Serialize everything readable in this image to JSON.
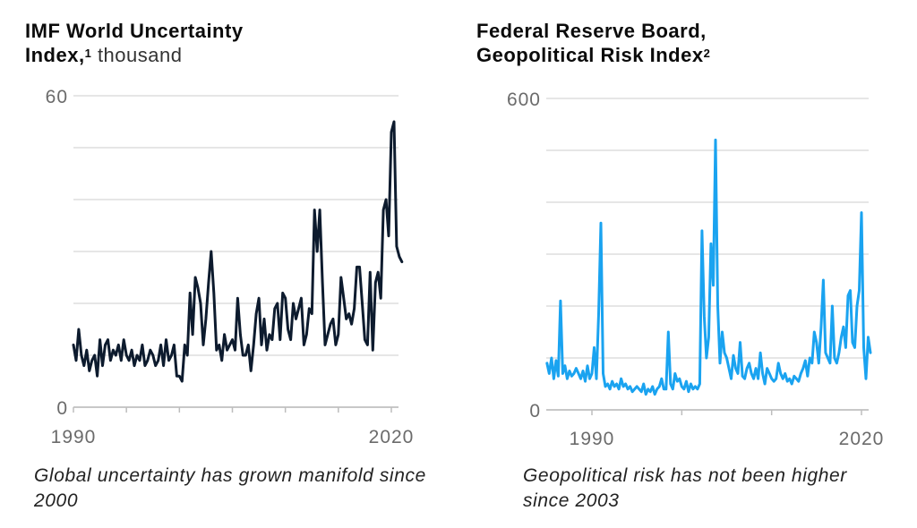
{
  "chart_data": [
    {
      "type": "line",
      "title": "IMF World Uncertainty Index,",
      "title_footnote": "1",
      "title_unit": "thousand",
      "caption": "Global uncertainty has grown manifold since 2000",
      "xlabel": "",
      "ylabel": "",
      "xlim": [
        1990,
        2021
      ],
      "ylim": [
        0,
        60
      ],
      "y_ticks": [
        0,
        60
      ],
      "y_tick_labels": [
        "0",
        "60"
      ],
      "gridlines_y": [
        0,
        10,
        20,
        30,
        40,
        50,
        60
      ],
      "x_ticks": [
        1990,
        1995,
        2000,
        2005,
        2010,
        2015,
        2020
      ],
      "x_tick_labels": [
        {
          "x": 1990,
          "label": "1990"
        },
        {
          "x": 2020,
          "label": "2020"
        }
      ],
      "grid": true,
      "line_color": "#0d1b2e",
      "series": [
        {
          "name": "World Uncertainty Index",
          "x": [
            1990.0,
            1990.25,
            1990.5,
            1990.75,
            1991.0,
            1991.25,
            1991.5,
            1991.75,
            1992.0,
            1992.25,
            1992.5,
            1992.75,
            1993.0,
            1993.25,
            1993.5,
            1993.75,
            1994.0,
            1994.25,
            1994.5,
            1994.75,
            1995.0,
            1995.25,
            1995.5,
            1995.75,
            1996.0,
            1996.25,
            1996.5,
            1996.75,
            1997.0,
            1997.25,
            1997.5,
            1997.75,
            1998.0,
            1998.25,
            1998.5,
            1998.75,
            1999.0,
            1999.25,
            1999.5,
            1999.75,
            2000.0,
            2000.25,
            2000.5,
            2000.75,
            2001.0,
            2001.25,
            2001.5,
            2001.75,
            2002.0,
            2002.25,
            2002.5,
            2002.75,
            2003.0,
            2003.25,
            2003.5,
            2003.75,
            2004.0,
            2004.25,
            2004.5,
            2004.75,
            2005.0,
            2005.25,
            2005.5,
            2005.75,
            2006.0,
            2006.25,
            2006.5,
            2006.75,
            2007.0,
            2007.25,
            2007.5,
            2007.75,
            2008.0,
            2008.25,
            2008.5,
            2008.75,
            2009.0,
            2009.25,
            2009.5,
            2009.75,
            2010.0,
            2010.25,
            2010.5,
            2010.75,
            2011.0,
            2011.25,
            2011.5,
            2011.75,
            2012.0,
            2012.25,
            2012.5,
            2012.75,
            2013.0,
            2013.25,
            2013.5,
            2013.75,
            2014.0,
            2014.25,
            2014.5,
            2014.75,
            2015.0,
            2015.25,
            2015.5,
            2015.75,
            2016.0,
            2016.25,
            2016.5,
            2016.75,
            2017.0,
            2017.25,
            2017.5,
            2017.75,
            2018.0,
            2018.25,
            2018.5,
            2018.75,
            2019.0,
            2019.25,
            2019.5,
            2019.75,
            2020.0,
            2020.25,
            2020.5,
            2020.75,
            2021.0
          ],
          "values": [
            12,
            9,
            15,
            10,
            8,
            11,
            7,
            9,
            10,
            6,
            13,
            8,
            12,
            13,
            9,
            11,
            10,
            12,
            9,
            13,
            10,
            9,
            11,
            8,
            10,
            9,
            12,
            8,
            9,
            11,
            10,
            8,
            9,
            12,
            8,
            13,
            9,
            10,
            12,
            6,
            6,
            5,
            12,
            10,
            22,
            14,
            25,
            23,
            20,
            12,
            17,
            24,
            30,
            22,
            11,
            12,
            9,
            14,
            11,
            12,
            13,
            11,
            21,
            14,
            10,
            10,
            12,
            7,
            12,
            18,
            21,
            12,
            17,
            11,
            14,
            13,
            19,
            20,
            13,
            22,
            21,
            15,
            13,
            20,
            17,
            19,
            21,
            12,
            14,
            19,
            18,
            38,
            30,
            38,
            24,
            12,
            14,
            16,
            17,
            12,
            14,
            25,
            21,
            17,
            18,
            16,
            19,
            27,
            27,
            20,
            13,
            12,
            26,
            11,
            24,
            26,
            21,
            38,
            40,
            33,
            53,
            55,
            31,
            29,
            28
          ],
          "note": "approximate values read from chart"
        }
      ]
    },
    {
      "type": "line",
      "title": "Federal Reserve Board, Geopolitical Risk Index",
      "title_footnote": "2",
      "caption": "Geopolitical risk has not been higher since 2003",
      "xlabel": "",
      "ylabel": "",
      "xlim": [
        1985,
        2021
      ],
      "ylim": [
        0,
        600
      ],
      "y_ticks": [
        0,
        600
      ],
      "y_tick_labels": [
        "0",
        "600"
      ],
      "gridlines_y": [
        0,
        100,
        200,
        300,
        400,
        500,
        600
      ],
      "x_ticks": [
        1990,
        2000,
        2010,
        2020
      ],
      "x_tick_labels": [
        {
          "x": 1990,
          "label": "1990"
        },
        {
          "x": 2020,
          "label": "2020"
        }
      ],
      "grid": true,
      "line_color": "#1aa3f0",
      "series": [
        {
          "name": "Geopolitical Risk Index",
          "x": [
            1985.0,
            1985.25,
            1985.5,
            1985.75,
            1986.0,
            1986.25,
            1986.5,
            1986.75,
            1987.0,
            1987.25,
            1987.5,
            1987.75,
            1988.0,
            1988.25,
            1988.5,
            1988.75,
            1989.0,
            1989.25,
            1989.5,
            1989.75,
            1990.0,
            1990.25,
            1990.5,
            1990.75,
            1991.0,
            1991.25,
            1991.5,
            1991.75,
            1992.0,
            1992.25,
            1992.5,
            1992.75,
            1993.0,
            1993.25,
            1993.5,
            1993.75,
            1994.0,
            1994.25,
            1994.5,
            1994.75,
            1995.0,
            1995.25,
            1995.5,
            1995.75,
            1996.0,
            1996.25,
            1996.5,
            1996.75,
            1997.0,
            1997.25,
            1997.5,
            1997.75,
            1998.0,
            1998.25,
            1998.5,
            1998.75,
            1999.0,
            1999.25,
            1999.5,
            1999.75,
            2000.0,
            2000.25,
            2000.5,
            2000.75,
            2001.0,
            2001.25,
            2001.5,
            2001.75,
            2002.0,
            2002.25,
            2002.5,
            2002.75,
            2003.0,
            2003.25,
            2003.5,
            2003.75,
            2004.0,
            2004.25,
            2004.5,
            2004.75,
            2005.0,
            2005.25,
            2005.5,
            2005.75,
            2006.0,
            2006.25,
            2006.5,
            2006.75,
            2007.0,
            2007.25,
            2007.5,
            2007.75,
            2008.0,
            2008.25,
            2008.5,
            2008.75,
            2009.0,
            2009.25,
            2009.5,
            2009.75,
            2010.0,
            2010.25,
            2010.5,
            2010.75,
            2011.0,
            2011.25,
            2011.5,
            2011.75,
            2012.0,
            2012.25,
            2012.5,
            2012.75,
            2013.0,
            2013.25,
            2013.5,
            2013.75,
            2014.0,
            2014.25,
            2014.5,
            2014.75,
            2015.0,
            2015.25,
            2015.5,
            2015.75,
            2016.0,
            2016.25,
            2016.5,
            2016.75,
            2017.0,
            2017.25,
            2017.5,
            2017.75,
            2018.0,
            2018.25,
            2018.5,
            2018.75,
            2019.0,
            2019.25,
            2019.5,
            2019.75,
            2020.0,
            2020.25,
            2020.5,
            2020.75,
            2021.0
          ],
          "values": [
            90,
            70,
            100,
            60,
            95,
            65,
            210,
            70,
            85,
            60,
            75,
            65,
            70,
            80,
            70,
            60,
            75,
            55,
            85,
            60,
            70,
            120,
            60,
            185,
            360,
            70,
            45,
            50,
            40,
            55,
            45,
            50,
            40,
            60,
            45,
            50,
            40,
            45,
            35,
            40,
            45,
            40,
            35,
            50,
            30,
            40,
            35,
            45,
            30,
            40,
            45,
            60,
            40,
            40,
            150,
            50,
            40,
            70,
            55,
            60,
            45,
            40,
            55,
            35,
            50,
            40,
            45,
            40,
            50,
            345,
            180,
            100,
            140,
            320,
            240,
            520,
            200,
            90,
            150,
            110,
            100,
            80,
            60,
            105,
            80,
            70,
            130,
            65,
            60,
            80,
            90,
            70,
            60,
            80,
            60,
            110,
            70,
            50,
            80,
            70,
            60,
            55,
            60,
            90,
            70,
            60,
            70,
            55,
            60,
            50,
            65,
            60,
            55,
            70,
            80,
            95,
            65,
            100,
            90,
            150,
            130,
            90,
            160,
            250,
            110,
            100,
            90,
            200,
            100,
            90,
            110,
            140,
            160,
            120,
            220,
            230,
            130,
            120,
            200,
            230,
            380,
            120,
            60,
            140,
            110
          ],
          "note": "approximate values read from chart"
        }
      ]
    }
  ]
}
